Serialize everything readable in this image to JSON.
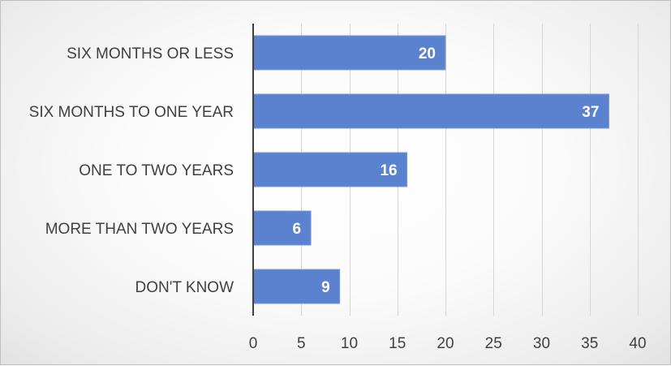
{
  "chart_data": {
    "type": "bar",
    "orientation": "horizontal",
    "categories": [
      "SIX MONTHS OR LESS",
      "SIX MONTHS TO ONE YEAR",
      "ONE TO TWO YEARS",
      "MORE THAN TWO YEARS",
      "DON'T KNOW"
    ],
    "values": [
      20,
      37,
      16,
      6,
      9
    ],
    "data_labels": [
      "20",
      "37",
      "16",
      "6",
      "9"
    ],
    "xlim": [
      0,
      40
    ],
    "x_ticks": [
      0,
      5,
      10,
      15,
      20,
      25,
      30,
      35,
      40
    ],
    "x_tick_labels": [
      "0",
      "5",
      "10",
      "15",
      "20",
      "25",
      "30",
      "35",
      "40"
    ],
    "grid": "vertical",
    "legend": "none",
    "title": "",
    "xlabel": "",
    "ylabel": "",
    "colors": {
      "bar": "#5b82cf",
      "bar_edge": "#7b9be0",
      "data_label": "#ffffff",
      "text": "#404040",
      "grid": "#d6d6d6"
    }
  }
}
